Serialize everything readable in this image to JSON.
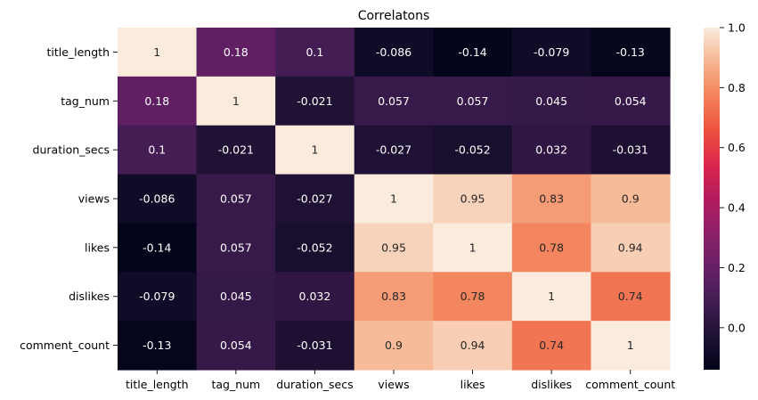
{
  "chart_data": {
    "type": "heatmap",
    "title": "Correlatons",
    "xlabel": "",
    "ylabel": "",
    "labels": [
      "title_length",
      "tag_num",
      "duration_secs",
      "views",
      "likes",
      "dislikes",
      "comment_count"
    ],
    "values": [
      [
        1,
        0.18,
        0.1,
        -0.086,
        -0.14,
        -0.079,
        -0.13
      ],
      [
        0.18,
        1,
        -0.021,
        0.057,
        0.057,
        0.045,
        0.054
      ],
      [
        0.1,
        -0.021,
        1,
        -0.027,
        -0.052,
        0.032,
        -0.031
      ],
      [
        -0.086,
        0.057,
        -0.027,
        1,
        0.95,
        0.83,
        0.9
      ],
      [
        -0.14,
        0.057,
        -0.052,
        0.95,
        1,
        0.78,
        0.94
      ],
      [
        -0.079,
        0.045,
        0.032,
        0.83,
        0.78,
        1,
        0.74
      ],
      [
        -0.13,
        0.054,
        -0.031,
        0.9,
        0.94,
        0.74,
        1
      ]
    ],
    "annotations": [
      [
        "1",
        "0.18",
        "0.1",
        "-0.086",
        "-0.14",
        "-0.079",
        "-0.13"
      ],
      [
        "0.18",
        "1",
        "-0.021",
        "0.057",
        "0.057",
        "0.045",
        "0.054"
      ],
      [
        "0.1",
        "-0.021",
        "1",
        "-0.027",
        "-0.052",
        "0.032",
        "-0.031"
      ],
      [
        "-0.086",
        "0.057",
        "-0.027",
        "1",
        "0.95",
        "0.83",
        "0.9"
      ],
      [
        "-0.14",
        "0.057",
        "-0.052",
        "0.95",
        "1",
        "0.78",
        "0.94"
      ],
      [
        "-0.079",
        "0.045",
        "0.032",
        "0.83",
        "0.78",
        "1",
        "0.74"
      ],
      [
        "-0.13",
        "0.054",
        "-0.031",
        "0.9",
        "0.94",
        "0.74",
        "1"
      ]
    ],
    "colormap": "rocket",
    "vmin": -0.14,
    "vmax": 1.0,
    "colorbar": {
      "ticks": [
        0.0,
        0.2,
        0.4,
        0.6,
        0.8,
        1.0
      ],
      "tick_labels": [
        "0.0",
        "0.2",
        "0.4",
        "0.6",
        "0.8",
        "1.0"
      ],
      "placement": "right"
    },
    "grid": false
  }
}
